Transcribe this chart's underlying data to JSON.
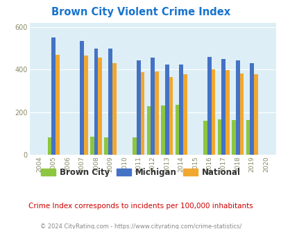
{
  "title": "Brown City Violent Crime Index",
  "subtitle": "Crime Index corresponds to incidents per 100,000 inhabitants",
  "footer": "© 2024 CityRating.com - https://www.cityrating.com/crime-statistics/",
  "years": [
    2005,
    2007,
    2008,
    2009,
    2011,
    2012,
    2013,
    2014,
    2016,
    2017,
    2018,
    2019
  ],
  "brown_city": [
    80,
    0,
    85,
    82,
    80,
    228,
    232,
    235,
    160,
    165,
    163,
    163
  ],
  "michigan": [
    552,
    535,
    500,
    498,
    443,
    455,
    425,
    425,
    460,
    450,
    445,
    432
  ],
  "national": [
    469,
    466,
    455,
    429,
    388,
    390,
    365,
    378,
    400,
    398,
    383,
    379
  ],
  "bar_width": 0.28,
  "xlim": [
    2003.3,
    2020.7
  ],
  "ylim": [
    0,
    620
  ],
  "yticks": [
    0,
    200,
    400,
    600
  ],
  "xticks": [
    2004,
    2005,
    2006,
    2007,
    2008,
    2009,
    2010,
    2011,
    2012,
    2013,
    2014,
    2015,
    2016,
    2017,
    2018,
    2019,
    2020
  ],
  "color_brown_city": "#8dc63f",
  "color_michigan": "#4472c4",
  "color_national": "#f0a830",
  "bg_color": "#ddeef6",
  "title_color": "#1874cd",
  "subtitle_color": "#cc0000",
  "footer_color": "#888888",
  "grid_color": "#ffffff"
}
